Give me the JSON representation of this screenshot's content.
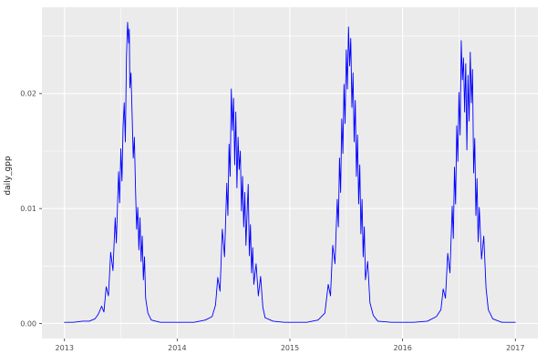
{
  "figure": {
    "panel_background": "#EBEBEB",
    "grid_major_color": "#FFFFFF",
    "grid_minor_color": "#FFFFFF",
    "tick_label_color": "#4d4d4d",
    "axis_title_color": "#1a1a1a",
    "line_color": "#0000FF"
  },
  "chart_data": {
    "type": "line",
    "title": "",
    "xlabel": "",
    "ylabel": "daily_gpp",
    "theme": "ggplot-grey",
    "grid": true,
    "legend": "none",
    "xlim": [
      2012.8,
      2017.2
    ],
    "ylim": [
      -0.00131,
      0.02751
    ],
    "x_ticks": [
      2013,
      2014,
      2015,
      2016,
      2017
    ],
    "x_tick_labels": [
      "2013",
      "2014",
      "2015",
      "2016",
      "2017"
    ],
    "y_ticks": [
      0.0,
      0.01,
      0.02
    ],
    "y_tick_labels": [
      "0.00",
      "0.01",
      "0.02"
    ],
    "x_minor": [
      2013.5,
      2014.5,
      2015.5,
      2016.5
    ],
    "y_minor": [
      0.005,
      0.015,
      0.025
    ],
    "series": [
      {
        "name": "daily_gpp",
        "color": "#0000FF",
        "x": [
          2013.0,
          2013.08,
          2013.16,
          2013.22,
          2013.27,
          2013.3,
          2013.33,
          2013.35,
          2013.37,
          2013.39,
          2013.41,
          2013.43,
          2013.45,
          2013.46,
          2013.48,
          2013.49,
          2013.5,
          2013.51,
          2013.52,
          2013.53,
          2013.54,
          2013.55,
          2013.56,
          2013.57,
          2013.575,
          2013.58,
          2013.59,
          2013.6,
          2013.61,
          2013.62,
          2013.63,
          2013.64,
          2013.65,
          2013.66,
          2013.67,
          2013.68,
          2013.69,
          2013.7,
          2013.71,
          2013.72,
          2013.74,
          2013.77,
          2013.85,
          2013.95,
          2014.05,
          2014.15,
          2014.25,
          2014.31,
          2014.34,
          2014.36,
          2014.38,
          2014.4,
          2014.42,
          2014.44,
          2014.45,
          2014.46,
          2014.47,
          2014.48,
          2014.49,
          2014.5,
          2014.51,
          2014.52,
          2014.53,
          2014.54,
          2014.55,
          2014.56,
          2014.57,
          2014.58,
          2014.59,
          2014.6,
          2014.61,
          2014.62,
          2014.63,
          2014.64,
          2014.65,
          2014.66,
          2014.67,
          2014.68,
          2014.7,
          2014.72,
          2014.74,
          2014.76,
          2014.78,
          2014.85,
          2014.95,
          2015.05,
          2015.15,
          2015.25,
          2015.31,
          2015.34,
          2015.36,
          2015.38,
          2015.4,
          2015.42,
          2015.43,
          2015.44,
          2015.45,
          2015.46,
          2015.47,
          2015.48,
          2015.49,
          2015.5,
          2015.51,
          2015.52,
          2015.53,
          2015.54,
          2015.55,
          2015.56,
          2015.57,
          2015.58,
          2015.59,
          2015.6,
          2015.61,
          2015.62,
          2015.63,
          2015.64,
          2015.65,
          2015.66,
          2015.67,
          2015.69,
          2015.71,
          2015.74,
          2015.78,
          2015.9,
          2016.0,
          2016.1,
          2016.22,
          2016.3,
          2016.34,
          2016.36,
          2016.38,
          2016.4,
          2016.42,
          2016.44,
          2016.45,
          2016.46,
          2016.47,
          2016.48,
          2016.49,
          2016.5,
          2016.51,
          2016.52,
          2016.53,
          2016.54,
          2016.55,
          2016.56,
          2016.57,
          2016.58,
          2016.59,
          2016.6,
          2016.61,
          2016.62,
          2016.63,
          2016.64,
          2016.65,
          2016.66,
          2016.67,
          2016.68,
          2016.7,
          2016.72,
          2016.74,
          2016.76,
          2016.8,
          2016.88,
          2016.96,
          2017.0
        ],
        "y": [
          0.0001,
          0.0001,
          0.0002,
          0.0002,
          0.0004,
          0.0008,
          0.0015,
          0.001,
          0.0032,
          0.0024,
          0.0062,
          0.0046,
          0.0092,
          0.007,
          0.0132,
          0.0105,
          0.0152,
          0.0124,
          0.0172,
          0.0192,
          0.0158,
          0.0232,
          0.0262,
          0.0244,
          0.0256,
          0.0205,
          0.0218,
          0.0182,
          0.0144,
          0.0162,
          0.0118,
          0.0082,
          0.0101,
          0.0064,
          0.0092,
          0.0054,
          0.0076,
          0.0038,
          0.0058,
          0.0022,
          0.0009,
          0.0003,
          0.0001,
          0.0001,
          0.0001,
          0.0001,
          0.0003,
          0.0006,
          0.0016,
          0.004,
          0.0028,
          0.0082,
          0.0058,
          0.0122,
          0.0094,
          0.0156,
          0.0128,
          0.0204,
          0.0168,
          0.0196,
          0.0138,
          0.0184,
          0.0118,
          0.0162,
          0.0134,
          0.015,
          0.0098,
          0.0128,
          0.0084,
          0.0114,
          0.0068,
          0.0096,
          0.0121,
          0.0059,
          0.0086,
          0.0044,
          0.0066,
          0.0034,
          0.0052,
          0.0024,
          0.0041,
          0.0014,
          0.0005,
          0.0002,
          0.0001,
          0.0001,
          0.0001,
          0.0003,
          0.0009,
          0.0034,
          0.0024,
          0.0068,
          0.0052,
          0.0108,
          0.0084,
          0.0144,
          0.0114,
          0.0178,
          0.0148,
          0.0208,
          0.0174,
          0.0238,
          0.0204,
          0.0258,
          0.0224,
          0.0248,
          0.0188,
          0.0218,
          0.0158,
          0.0194,
          0.0128,
          0.0164,
          0.0104,
          0.0138,
          0.0078,
          0.0108,
          0.0058,
          0.0084,
          0.0038,
          0.0054,
          0.0018,
          0.0007,
          0.0002,
          0.0001,
          0.0001,
          0.0001,
          0.0002,
          0.0006,
          0.0012,
          0.003,
          0.0022,
          0.0061,
          0.0044,
          0.0102,
          0.0074,
          0.0136,
          0.0104,
          0.0172,
          0.0141,
          0.0201,
          0.0164,
          0.0246,
          0.0212,
          0.0231,
          0.0184,
          0.0226,
          0.0151,
          0.0216,
          0.0176,
          0.0236,
          0.0192,
          0.0221,
          0.0131,
          0.0161,
          0.0094,
          0.0126,
          0.0071,
          0.0101,
          0.0056,
          0.0076,
          0.0031,
          0.0012,
          0.0004,
          0.0001,
          0.0001,
          0.0001
        ]
      }
    ]
  }
}
